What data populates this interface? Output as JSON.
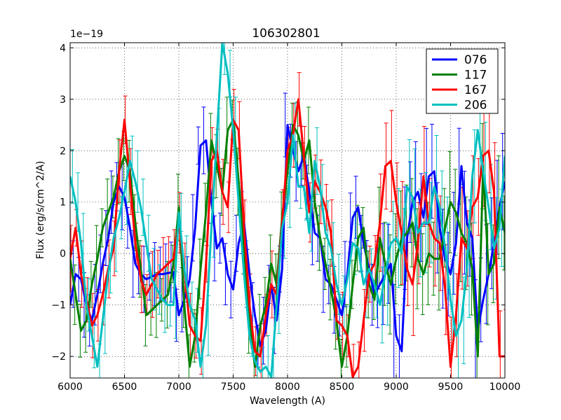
{
  "chart_data": {
    "type": "line",
    "title": "106302801",
    "xlabel": "Wavelength (A)",
    "ylabel": "Flux (erg/s/cm^2/A)",
    "offset_label": "1e−19",
    "xlim": [
      6000,
      10000
    ],
    "ylim": [
      -2.42,
      4.1
    ],
    "xticks": [
      6000,
      6500,
      7000,
      7500,
      8000,
      8500,
      9000,
      9500,
      10000
    ],
    "xtick_labels": [
      "6000",
      "6500",
      "7000",
      "7500",
      "8000",
      "8500",
      "9000",
      "9500",
      "10000"
    ],
    "yticks": [
      -2,
      -1,
      0,
      1,
      2,
      3,
      4
    ],
    "ytick_labels": [
      "−2",
      "−1",
      "0",
      "1",
      "2",
      "3",
      "4"
    ],
    "grid": true,
    "legend_position": "top-right",
    "series": [
      {
        "name": "076",
        "color": "#0000ff",
        "x": [
          6000,
          6050,
          6100,
          6150,
          6200,
          6250,
          6300,
          6350,
          6400,
          6450,
          6500,
          6550,
          6600,
          6650,
          6700,
          6750,
          6800,
          6850,
          6900,
          6950,
          7000,
          7050,
          7100,
          7150,
          7200,
          7250,
          7300,
          7350,
          7400,
          7450,
          7500,
          7550,
          7600,
          7650,
          7700,
          7750,
          7800,
          7850,
          7900,
          7950,
          8000,
          8050,
          8100,
          8150,
          8200,
          8250,
          8300,
          8350,
          8400,
          8450,
          8500,
          8550,
          8600,
          8650,
          8700,
          8750,
          8800,
          8850,
          8900,
          8950,
          9000,
          9050,
          9100,
          9150,
          9200,
          9250,
          9300,
          9350,
          9400,
          9450,
          9500,
          9550,
          9600,
          9650,
          9700,
          9750,
          9800,
          9850,
          9900,
          9950,
          10000
        ],
        "y": [
          -1.0,
          -0.4,
          -0.5,
          -1.0,
          -1.3,
          -0.8,
          -0.2,
          0.3,
          1.0,
          1.3,
          1.1,
          0.5,
          -0.2,
          -0.4,
          -0.5,
          -0.45,
          -0.4,
          -0.4,
          -0.38,
          -0.36,
          -1.2,
          -0.9,
          -0.5,
          0.5,
          2.1,
          2.2,
          1.0,
          0.1,
          0.3,
          -0.4,
          -0.7,
          0.2,
          0.6,
          -0.4,
          -1.2,
          -1.8,
          -1.5,
          -0.6,
          -1.3,
          -0.3,
          2.5,
          2.0,
          1.6,
          1.9,
          1.2,
          0.4,
          0.3,
          -0.5,
          -0.6,
          -0.9,
          -1.2,
          -0.4,
          0.7,
          0.9,
          0.2,
          -0.3,
          -0.8,
          -0.6,
          -0.4,
          -0.2,
          -1.6,
          -1.9,
          0.3,
          1.0,
          1.2,
          0.7,
          1.5,
          1.6,
          0.5,
          -0.1,
          -0.4,
          0.2,
          1.7,
          0.6,
          0.3,
          -1.5,
          -0.9,
          -0.4,
          0.2,
          0.9,
          1.4
        ]
      },
      {
        "name": "117",
        "color": "#008000",
        "x": [
          6000,
          6050,
          6100,
          6150,
          6200,
          6250,
          6300,
          6350,
          6400,
          6450,
          6500,
          6550,
          6600,
          6650,
          6700,
          6750,
          6800,
          6850,
          6900,
          6950,
          7000,
          7050,
          7100,
          7150,
          7200,
          7250,
          7300,
          7350,
          7400,
          7450,
          7500,
          7550,
          7600,
          7650,
          7700,
          7750,
          7800,
          7850,
          7900,
          7950,
          8000,
          8050,
          8100,
          8150,
          8200,
          8250,
          8300,
          8350,
          8400,
          8450,
          8500,
          8550,
          8600,
          8650,
          8700,
          8750,
          8800,
          8850,
          8900,
          8950,
          9000,
          9050,
          9100,
          9150,
          9200,
          9250,
          9300,
          9350,
          9400,
          9450,
          9500,
          9550,
          9600,
          9650,
          9700,
          9750,
          9800,
          9850,
          9900,
          9950,
          10000
        ],
        "y": [
          -0.1,
          -0.8,
          -1.5,
          -1.3,
          -0.6,
          -0.1,
          0.5,
          0.8,
          1.1,
          1.6,
          1.9,
          1.6,
          0.6,
          -0.3,
          -1.2,
          -1.1,
          -1.0,
          -0.9,
          -0.8,
          -0.2,
          0.9,
          -1.0,
          -2.2,
          -1.6,
          -0.3,
          0.8,
          2.2,
          1.7,
          1.2,
          2.4,
          2.6,
          1.4,
          0.0,
          -1.3,
          -2.2,
          -1.4,
          -1.0,
          -0.2,
          -0.6,
          0.7,
          1.6,
          2.5,
          2.3,
          1.8,
          2.2,
          1.0,
          0.3,
          -0.2,
          -0.7,
          -1.3,
          -2.2,
          -1.6,
          -0.6,
          0.3,
          0.5,
          -0.6,
          -0.9,
          0.3,
          -0.2,
          -0.6,
          -0.1,
          0.3,
          0.4,
          0.6,
          -0.1,
          -0.4,
          0.0,
          -0.1,
          -0.1,
          0.5,
          1.0,
          0.8,
          0.4,
          0.2,
          -0.3,
          -2.0,
          1.7,
          -0.4,
          -0.2,
          0.9,
          0.4
        ]
      },
      {
        "name": "167",
        "color": "#ff0000",
        "x": [
          6000,
          6050,
          6100,
          6150,
          6200,
          6250,
          6300,
          6350,
          6400,
          6450,
          6500,
          6550,
          6600,
          6650,
          6700,
          6750,
          6800,
          6850,
          6900,
          6950,
          7000,
          7050,
          7100,
          7150,
          7200,
          7250,
          7300,
          7350,
          7400,
          7450,
          7500,
          7550,
          7600,
          7650,
          7700,
          7750,
          7800,
          7850,
          7900,
          7950,
          8000,
          8050,
          8100,
          8150,
          8200,
          8250,
          8300,
          8350,
          8400,
          8450,
          8500,
          8550,
          8600,
          8650,
          8700,
          8750,
          8800,
          8850,
          8900,
          8950,
          9000,
          9050,
          9100,
          9150,
          9200,
          9250,
          9300,
          9350,
          9400,
          9450,
          9500,
          9550,
          9600,
          9650,
          9700,
          9750,
          9800,
          9850,
          9900,
          9950,
          10000
        ],
        "y": [
          -0.1,
          0.5,
          -0.4,
          -0.9,
          -1.4,
          -1.2,
          -0.8,
          -0.3,
          0.1,
          1.6,
          2.6,
          1.4,
          0.2,
          -0.5,
          -0.8,
          -0.6,
          -0.4,
          -0.3,
          -0.2,
          -0.1,
          0.6,
          -0.3,
          -1.4,
          -1.6,
          -1.7,
          -0.2,
          1.8,
          2.0,
          1.2,
          0.9,
          2.6,
          2.4,
          0.5,
          -1.0,
          -1.9,
          -2.0,
          -1.2,
          -0.6,
          -0.8,
          0.6,
          2.0,
          2.3,
          3.0,
          1.9,
          0.8,
          1.4,
          1.2,
          0.9,
          0.4,
          -1.3,
          -1.4,
          -1.6,
          -2.4,
          -2.2,
          -1.3,
          -0.4,
          -0.2,
          0.6,
          1.7,
          1.8,
          1.0,
          0.4,
          -0.3,
          -0.6,
          0.2,
          1.5,
          0.6,
          0.3,
          0.2,
          -0.7,
          -2.2,
          -1.2,
          0.3,
          0.1,
          0.9,
          1.1,
          1.9,
          2.0,
          1.2,
          -2.0,
          -2.0
        ]
      },
      {
        "name": "206",
        "color": "#00bfbf",
        "x": [
          6000,
          6050,
          6100,
          6150,
          6200,
          6250,
          6300,
          6350,
          6400,
          6450,
          6500,
          6550,
          6600,
          6650,
          6700,
          6750,
          6800,
          6850,
          6900,
          6950,
          7000,
          7050,
          7100,
          7150,
          7200,
          7250,
          7300,
          7350,
          7400,
          7450,
          7500,
          7550,
          7600,
          7650,
          7700,
          7750,
          7800,
          7850,
          7900,
          7950,
          8000,
          8050,
          8100,
          8150,
          8200,
          8250,
          8300,
          8350,
          8400,
          8450,
          8500,
          8550,
          8600,
          8650,
          8700,
          8750,
          8800,
          8850,
          8900,
          8950,
          9000,
          9050,
          9100,
          9150,
          9200,
          9250,
          9300,
          9350,
          9400,
          9450,
          9500,
          9550,
          9600,
          9650,
          9700,
          9750,
          9800,
          9850,
          9900,
          9950,
          10000
        ],
        "y": [
          1.5,
          1.0,
          0.2,
          -1.0,
          -1.6,
          -2.2,
          -1.3,
          -0.4,
          0.3,
          0.7,
          1.2,
          1.8,
          1.4,
          0.9,
          0.2,
          -0.5,
          -0.7,
          -0.9,
          -1.0,
          -1.0,
          0.8,
          -0.3,
          -1.0,
          -1.3,
          -2.2,
          -1.4,
          0.5,
          2.3,
          4.1,
          3.5,
          2.4,
          1.0,
          -0.4,
          -1.6,
          -2.1,
          -2.3,
          -2.2,
          -2.4,
          -1.0,
          0.5,
          1.0,
          2.3,
          1.3,
          1.3,
          0.4,
          1.8,
          1.3,
          0.4,
          0.1,
          -0.6,
          -1.0,
          -0.5,
          0.2,
          0.1,
          -0.6,
          -0.3,
          -0.6,
          -1.0,
          -0.4,
          0.2,
          0.3,
          0.0,
          1.3,
          1.1,
          0.4,
          0.6,
          0.6,
          1.3,
          0.9,
          0.1,
          -0.9,
          -1.6,
          -1.3,
          -0.3,
          1.5,
          2.4,
          1.6,
          0.9,
          0.1,
          0.5,
          1.9
        ]
      }
    ]
  }
}
